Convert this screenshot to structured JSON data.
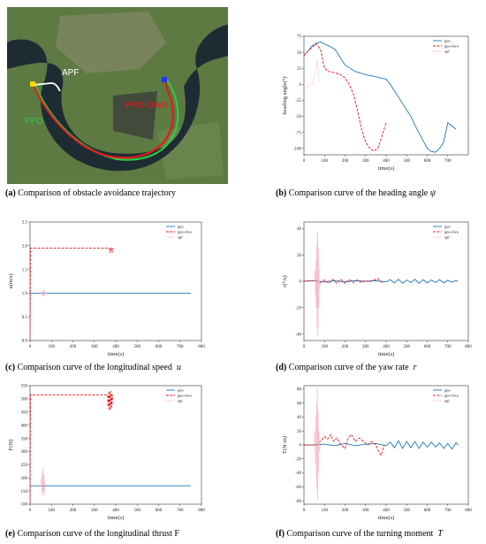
{
  "colors": {
    "ppo": "#1f77b4",
    "ppo_dwa": "#e41a1c",
    "apf": "#f4a6b7",
    "river": "#1f2b33",
    "land": "#5d7a43"
  },
  "map": {
    "labels": {
      "apf": "APF",
      "ppo": "PPO",
      "ppo_dwa": "PPO-DWA"
    },
    "icons": {
      "start": "yellow-square-icon",
      "goal": "blue-square-icon"
    }
  },
  "captions": [
    {
      "tag": "(a)",
      "text": "Comparison of obstacle avoidance trajectory",
      "symbol": ""
    },
    {
      "tag": "(b)",
      "text": "Comparison curve of the heading angle",
      "symbol": "ψ"
    },
    {
      "tag": "(c)",
      "text": "Comparison curve of the longitudinal speed",
      "symbol": "u"
    },
    {
      "tag": "(d)",
      "text": "Comparison curve of the yaw rate",
      "symbol": "r"
    },
    {
      "tag": "(e)",
      "text": "Comparison curve of the longitudinal thrust F",
      "symbol": ""
    },
    {
      "tag": "(f)",
      "text": "Comparison curve of the turning moment",
      "symbol": "T"
    }
  ],
  "legend": [
    "ppo",
    "ppo-dwa",
    "apf"
  ],
  "chart_data": [
    {
      "id": "heading",
      "type": "line",
      "xlabel": "time(s)",
      "ylabel": "heading angle(°)",
      "xlim": [
        0,
        800
      ],
      "ylim": [
        -110,
        75
      ],
      "xticks": [
        0,
        100,
        200,
        300,
        400,
        500,
        600,
        700
      ],
      "yticks": [
        75,
        50,
        25,
        0,
        -25,
        -50,
        -75,
        -100
      ],
      "grid": false,
      "legend_position": "top-right",
      "series": [
        {
          "name": "ppo",
          "style": "solid",
          "x": [
            0,
            20,
            40,
            60,
            80,
            100,
            120,
            150,
            170,
            200,
            250,
            300,
            350,
            400,
            420,
            440,
            460,
            490,
            520,
            550,
            580,
            600,
            620,
            640,
            660,
            680,
            700,
            720,
            740
          ],
          "y": [
            45,
            52,
            60,
            64,
            66,
            63,
            60,
            55,
            45,
            30,
            20,
            15,
            12,
            8,
            0,
            -10,
            -20,
            -35,
            -50,
            -70,
            -88,
            -100,
            -105,
            -106,
            -100,
            -90,
            -60,
            -65,
            -70
          ]
        },
        {
          "name": "ppo-dwa",
          "style": "dashed",
          "x": [
            0,
            30,
            60,
            80,
            100,
            120,
            150,
            180,
            200,
            220,
            240,
            260,
            280,
            300,
            320,
            340,
            360,
            380,
            400
          ],
          "y": [
            45,
            55,
            63,
            55,
            25,
            20,
            18,
            15,
            10,
            0,
            -15,
            -40,
            -70,
            -90,
            -100,
            -104,
            -100,
            -80,
            -60
          ]
        },
        {
          "name": "apf",
          "style": "dotted",
          "x": [
            0,
            20,
            40,
            50,
            60,
            65,
            70,
            75
          ],
          "y": [
            -5,
            -3,
            0,
            10,
            25,
            38,
            20,
            5
          ]
        }
      ]
    },
    {
      "id": "speed",
      "type": "line",
      "xlabel": "time(s)",
      "ylabel": "u(m/s)",
      "xlim": [
        0,
        800
      ],
      "ylim": [
        0,
        2.5
      ],
      "xticks": [
        0,
        100,
        200,
        300,
        400,
        500,
        600,
        700,
        800
      ],
      "yticks": [
        2.5,
        2.0,
        1.5,
        1.0,
        0.5,
        0.0
      ],
      "grid": false,
      "legend_position": "top-right",
      "series": [
        {
          "name": "ppo",
          "style": "solid",
          "x": [
            0,
            750
          ],
          "y": [
            1.0,
            1.0
          ]
        },
        {
          "name": "ppo-dwa",
          "style": "dashed",
          "x": [
            0,
            2,
            5,
            370,
            372,
            376,
            378,
            382,
            384,
            388
          ],
          "y": [
            0.0,
            1.95,
            1.95,
            1.95,
            1.85,
            1.95,
            1.88,
            1.95,
            1.86,
            1.95
          ]
        },
        {
          "name": "apf",
          "style": "dotted",
          "x": [
            50,
            55,
            58,
            60,
            62,
            64,
            66,
            68,
            70,
            72,
            75
          ],
          "y": [
            1.0,
            1.06,
            0.94,
            1.05,
            0.95,
            1.07,
            0.93,
            1.05,
            0.96,
            1.02,
            1.0
          ]
        }
      ]
    },
    {
      "id": "yaw",
      "type": "line",
      "xlabel": "time(s)",
      "ylabel": "r(°/s)",
      "xlim": [
        0,
        800
      ],
      "ylim": [
        -45,
        45
      ],
      "xticks": [
        0,
        100,
        200,
        300,
        400,
        500,
        600,
        700,
        800
      ],
      "yticks": [
        40,
        20,
        0,
        -20,
        -40
      ],
      "grid": false,
      "legend_position": "top-right",
      "series": [
        {
          "name": "ppo",
          "style": "solid",
          "x": [
            0,
            50,
            100,
            150,
            200,
            250,
            300,
            350,
            400,
            420,
            440,
            460,
            480,
            500,
            520,
            540,
            560,
            580,
            600,
            620,
            640,
            660,
            680,
            700,
            720,
            740,
            750
          ],
          "y": [
            0,
            0.5,
            -0.5,
            0.5,
            -0.5,
            0.5,
            0,
            0.5,
            -0.5,
            1.2,
            -1.2,
            1.5,
            -1.5,
            1.0,
            -1.0,
            1.5,
            -1.5,
            1.2,
            -1.2,
            1.0,
            -1.0,
            1.2,
            -1.2,
            0.8,
            -0.8,
            0.5,
            0
          ]
        },
        {
          "name": "ppo-dwa",
          "style": "dashed",
          "x": [
            0,
            50,
            80,
            100,
            120,
            140,
            160,
            180,
            200,
            220,
            240,
            260,
            280,
            300,
            320,
            340,
            360,
            380,
            390
          ],
          "y": [
            0,
            0.5,
            -1,
            1,
            -1.5,
            1.5,
            -1.5,
            1.5,
            -1.5,
            1.5,
            -1,
            1,
            -1,
            0.5,
            -0.5,
            1,
            2,
            -1,
            0
          ]
        },
        {
          "name": "apf",
          "style": "dotted",
          "x": [
            50,
            54,
            56,
            58,
            60,
            62,
            64,
            66,
            68,
            70,
            72,
            74,
            76,
            80
          ],
          "y": [
            0,
            8,
            -10,
            18,
            -20,
            30,
            -35,
            38,
            -42,
            25,
            -20,
            10,
            -5,
            0
          ]
        }
      ]
    },
    {
      "id": "thrust",
      "type": "line",
      "xlabel": "time(s)",
      "ylabel": "F(N)",
      "xlim": [
        0,
        800
      ],
      "ylim": [
        100,
        550
      ],
      "xticks": [
        0,
        100,
        200,
        300,
        400,
        500,
        600,
        700,
        800
      ],
      "yticks": [
        550,
        500,
        450,
        400,
        350,
        300,
        250,
        200,
        150,
        100
      ],
      "grid": false,
      "legend_position": "top-right",
      "series": [
        {
          "name": "ppo",
          "style": "solid",
          "x": [
            0,
            750
          ],
          "y": [
            170,
            170
          ]
        },
        {
          "name": "ppo-dwa",
          "style": "dashed",
          "x": [
            0,
            2,
            5,
            362,
            364,
            368,
            370,
            374,
            376,
            380,
            382,
            386
          ],
          "y": [
            100,
            515,
            515,
            515,
            470,
            530,
            455,
            525,
            460,
            530,
            470,
            515
          ]
        },
        {
          "name": "apf",
          "style": "dotted",
          "x": [
            50,
            53,
            55,
            57,
            59,
            61,
            63,
            65,
            67,
            69,
            71,
            75
          ],
          "y": [
            170,
            200,
            140,
            220,
            130,
            240,
            150,
            210,
            135,
            190,
            160,
            170
          ]
        }
      ]
    },
    {
      "id": "moment",
      "type": "line",
      "xlabel": "time(s)",
      "ylabel": "T(N·m)",
      "xlim": [
        0,
        800
      ],
      "ylim": [
        -85,
        85
      ],
      "xticks": [
        0,
        100,
        200,
        300,
        400,
        500,
        600,
        700,
        800
      ],
      "yticks": [
        80,
        60,
        40,
        20,
        0,
        -20,
        -40,
        -60,
        -80
      ],
      "grid": false,
      "legend_position": "top-right",
      "series": [
        {
          "name": "ppo",
          "style": "solid",
          "x": [
            0,
            50,
            100,
            150,
            200,
            250,
            300,
            350,
            400,
            420,
            440,
            460,
            480,
            500,
            520,
            540,
            560,
            580,
            600,
            620,
            640,
            660,
            680,
            700,
            720,
            740,
            750
          ],
          "y": [
            0,
            0,
            1,
            -1,
            2,
            -1,
            1,
            2,
            -1,
            4,
            -4,
            6,
            -5,
            5,
            -4,
            5,
            -5,
            4,
            -3,
            4,
            -3,
            3,
            -5,
            2,
            -6,
            3,
            0
          ]
        },
        {
          "name": "ppo-dwa",
          "style": "dashed",
          "x": [
            0,
            60,
            80,
            100,
            115,
            130,
            145,
            160,
            180,
            200,
            215,
            230,
            250,
            270,
            290,
            310,
            330,
            350,
            365,
            375,
            385,
            390
          ],
          "y": [
            0,
            0,
            5,
            12,
            8,
            15,
            5,
            10,
            0,
            -5,
            10,
            15,
            5,
            10,
            5,
            0,
            5,
            0,
            -10,
            -15,
            -5,
            0
          ]
        },
        {
          "name": "apf",
          "style": "dotted",
          "x": [
            50,
            53,
            55,
            57,
            59,
            61,
            63,
            65,
            67,
            69,
            71,
            73,
            76,
            80
          ],
          "y": [
            0,
            20,
            -25,
            40,
            -45,
            60,
            -65,
            80,
            -80,
            50,
            -40,
            20,
            -10,
            0
          ]
        }
      ]
    }
  ]
}
